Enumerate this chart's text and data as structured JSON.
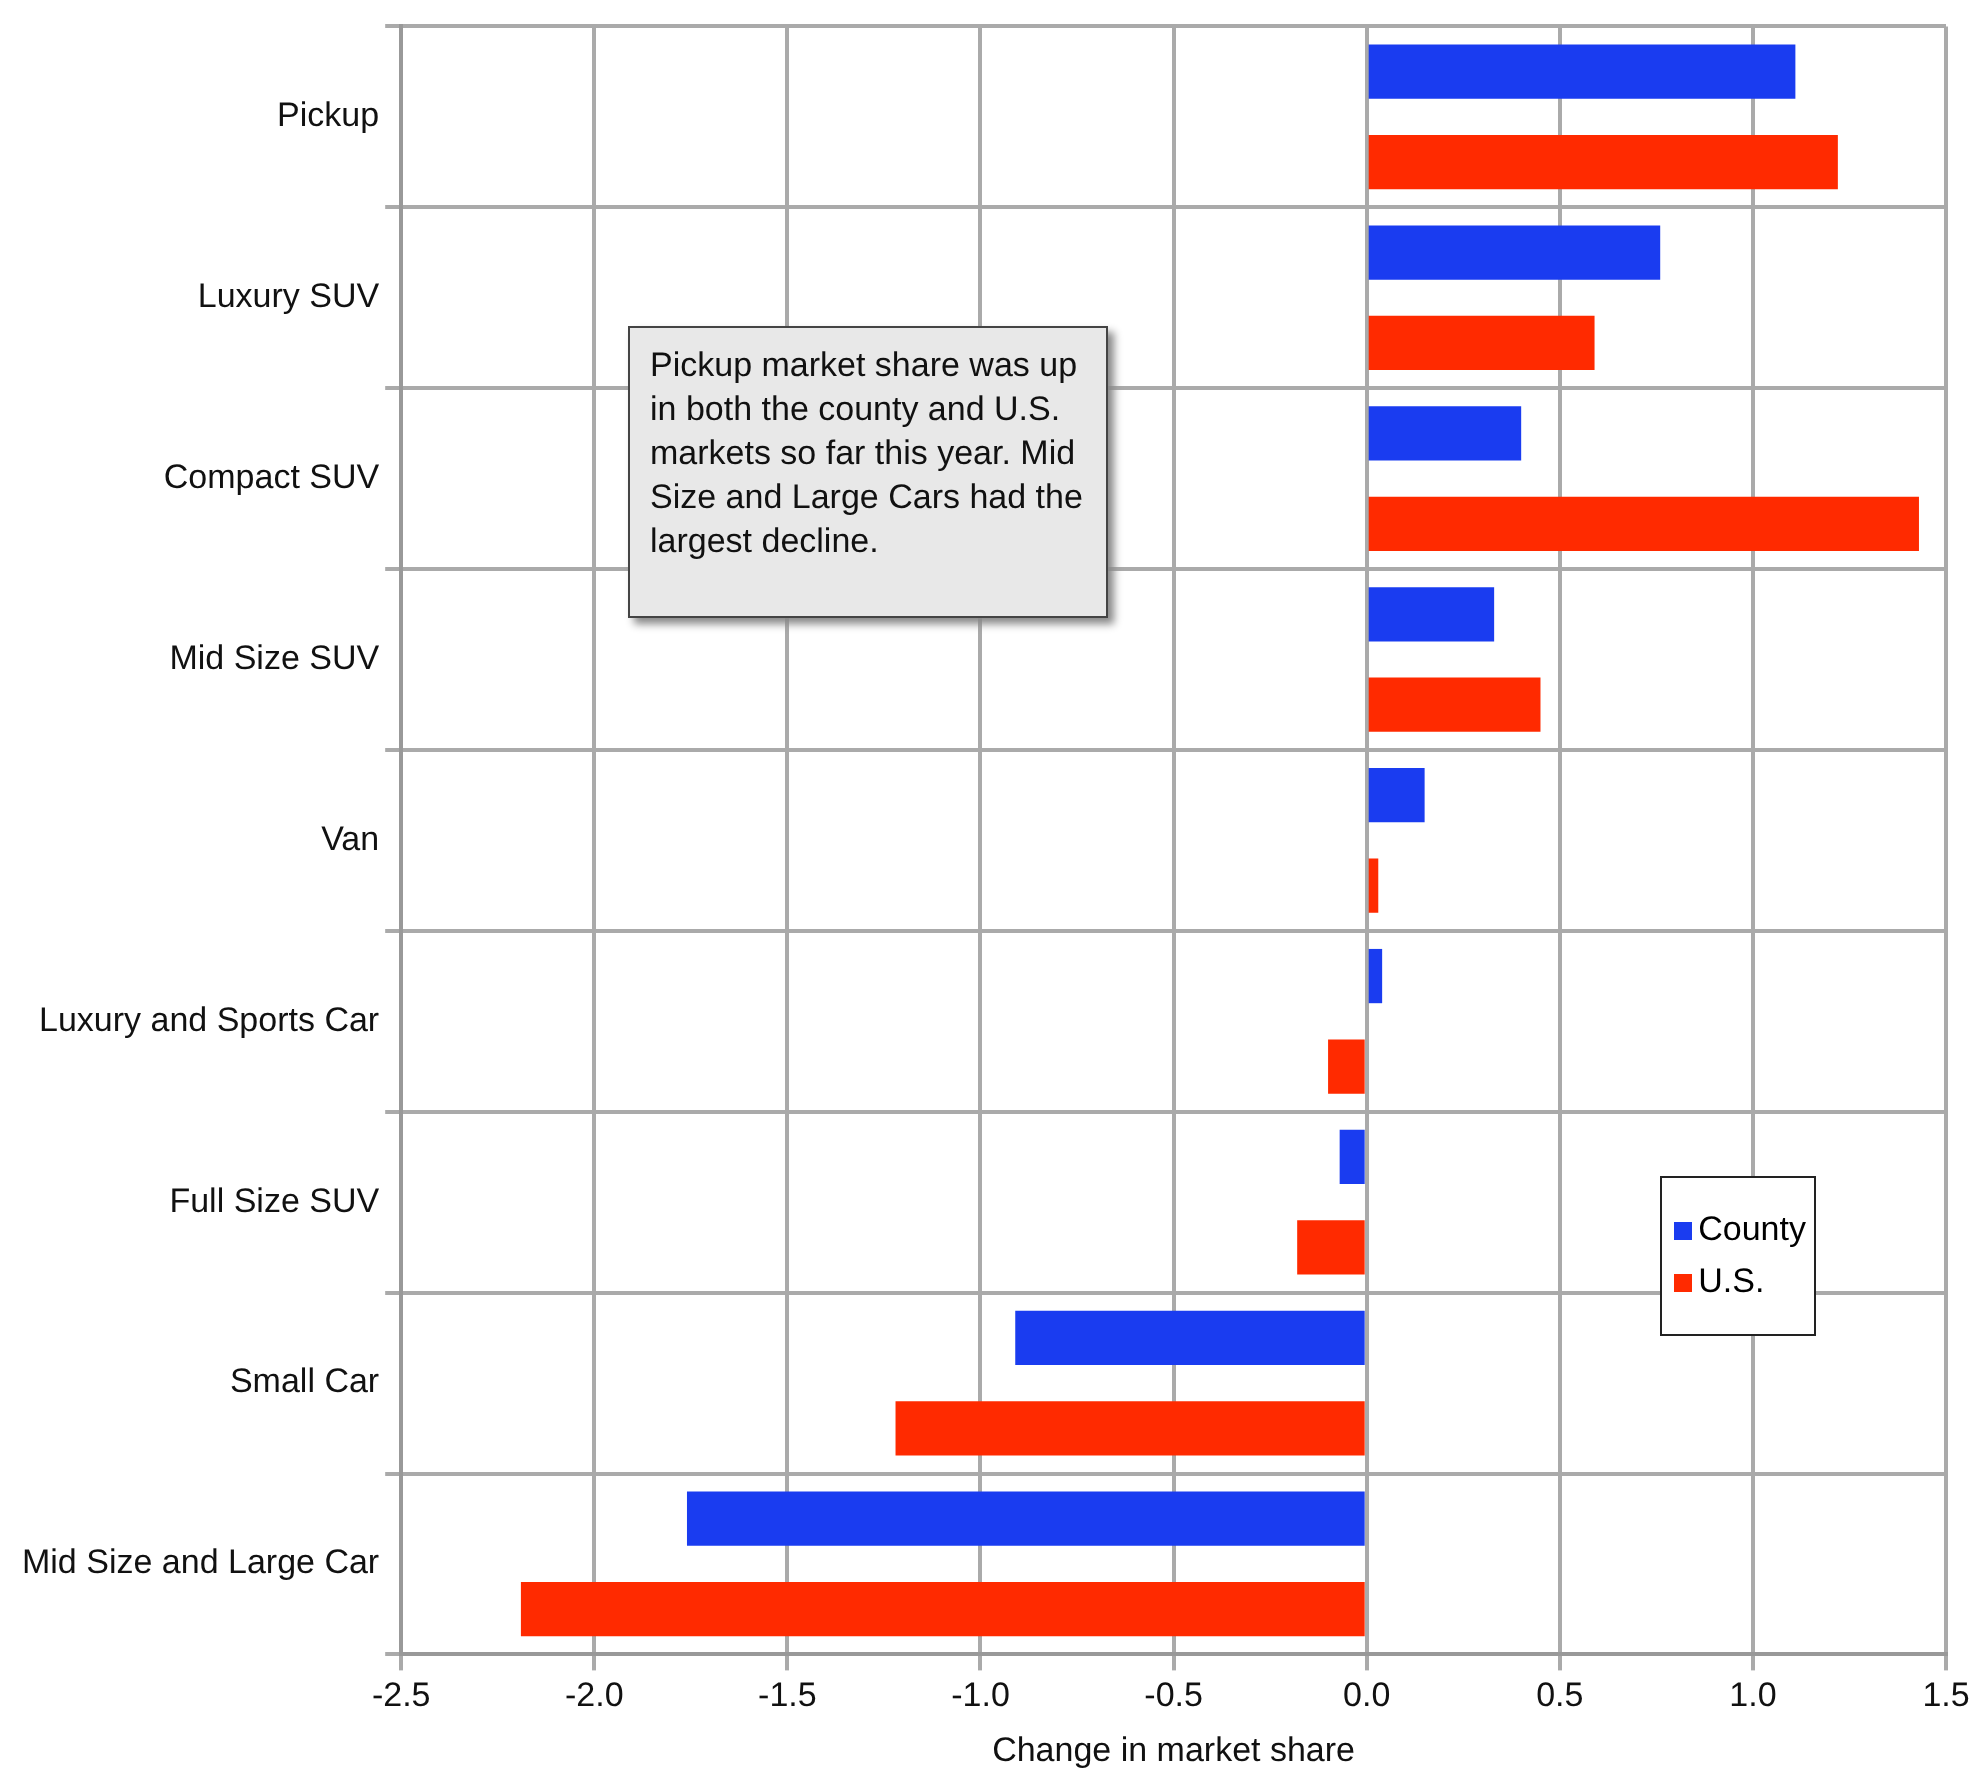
{
  "chart_data": {
    "type": "bar",
    "orientation": "horizontal",
    "xlabel": "Change in market share",
    "categories": [
      "Pickup",
      "Luxury SUV",
      "Compact SUV",
      "Mid Size SUV",
      "Van",
      "Luxury and Sports Car",
      "Full Size SUV",
      "Small Car",
      "Mid Size and Large Car"
    ],
    "series": [
      {
        "name": "County",
        "color": "#1a3cf0",
        "values": [
          1.11,
          0.76,
          0.4,
          0.33,
          0.15,
          0.04,
          -0.07,
          -0.91,
          -1.76
        ]
      },
      {
        "name": "U.S.",
        "color": "#ff2a00",
        "values": [
          1.22,
          0.59,
          1.43,
          0.45,
          0.03,
          -0.1,
          -0.18,
          -1.22,
          -2.19
        ]
      }
    ],
    "xlim": [
      -2.5,
      1.5
    ],
    "xticks": [
      {
        "value": -2.5,
        "label": "-2.5"
      },
      {
        "value": -2,
        "label": "-2.0"
      },
      {
        "value": -1.5,
        "label": "-1.5"
      },
      {
        "value": -1,
        "label": "-1.0"
      },
      {
        "value": -0.5,
        "label": "-0.5"
      },
      {
        "value": 0,
        "label": "0.0"
      },
      {
        "value": 0.5,
        "label": "0.5"
      },
      {
        "value": 1,
        "label": "1.0"
      },
      {
        "value": 1.5,
        "label": "1.5"
      }
    ],
    "grid": true,
    "legend": "bottom right",
    "annotations": [
      "Pickup market share was up in both the county and U.S. markets so far this year. Mid Size and Large Cars had the largest decline."
    ]
  }
}
